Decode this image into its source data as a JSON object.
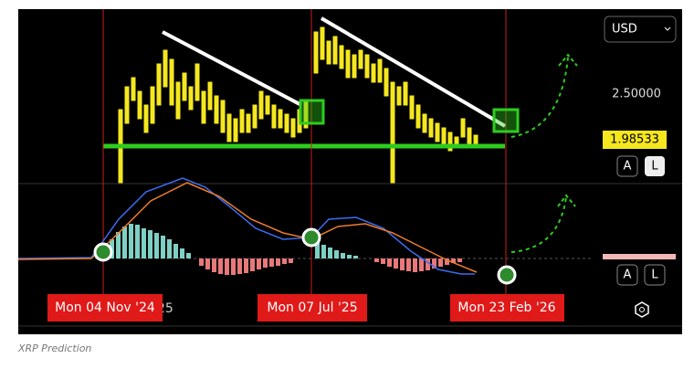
{
  "currency": "USD",
  "price_axis": {
    "level": "2.50000",
    "current": "1.98533"
  },
  "buttons": {
    "top_auto": "A",
    "top_log": "L",
    "bottom_auto": "A",
    "bottom_log": "L"
  },
  "date_labels": [
    "Mon 04 Nov '24",
    "Mon 07 Jul '25",
    "Mon 23 Feb '26"
  ],
  "partial_axis_label": "25",
  "caption": "XRP Prediction"
}
